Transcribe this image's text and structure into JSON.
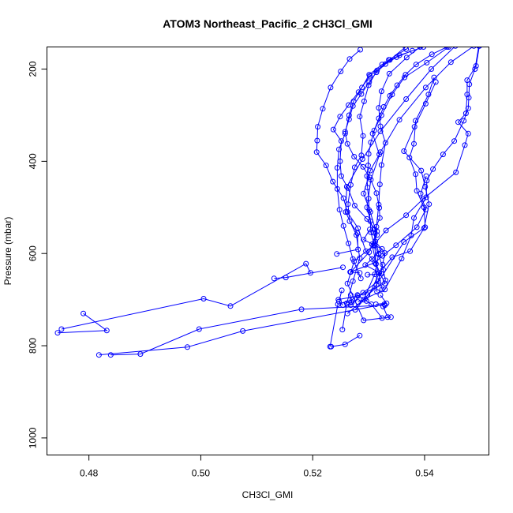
{
  "chart_data": {
    "type": "line",
    "title": "ATOM3 Northeast_Pacific_2 CH3Cl_GMI",
    "xlabel": "CH3Cl_GMI",
    "ylabel": "Pressure (mbar)",
    "xlim": [
      0.4725,
      0.5515
    ],
    "ylim": [
      1037,
      152
    ],
    "y_reversed": true,
    "xticks": [
      0.48,
      0.5,
      0.52,
      0.54
    ],
    "xtick_labels": [
      "0.48",
      "0.50",
      "0.52",
      "0.54"
    ],
    "yticks": [
      200,
      400,
      600,
      800,
      1000
    ],
    "ytick_labels": [
      "200",
      "400",
      "600",
      "800",
      "1000"
    ],
    "grid": false,
    "legend": "none",
    "colors": {
      "series": "#0000ff",
      "axis": "#000000",
      "background": "#ffffff"
    },
    "series": [
      {
        "points": [
          [
            0.5253,
            765
          ],
          [
            0.5261,
            708
          ],
          [
            0.5272,
            660
          ],
          [
            0.5284,
            610
          ],
          [
            0.5278,
            560
          ],
          [
            0.5259,
            510
          ],
          [
            0.5261,
            455
          ],
          [
            0.5289,
            395
          ],
          [
            0.5321,
            335
          ],
          [
            0.5367,
            265
          ],
          [
            0.5412,
            200
          ],
          [
            0.5455,
            150
          ]
        ]
      },
      {
        "points": [
          [
            0.5262,
            730
          ],
          [
            0.5291,
            700
          ],
          [
            0.5311,
            645
          ],
          [
            0.5318,
            600
          ],
          [
            0.5309,
            555
          ],
          [
            0.5297,
            500
          ],
          [
            0.5304,
            440
          ],
          [
            0.5321,
            380
          ],
          [
            0.5355,
            310
          ],
          [
            0.5402,
            240
          ],
          [
            0.5447,
            185
          ],
          [
            0.5488,
            150
          ]
        ]
      },
      {
        "points": [
          [
            0.5231,
            802
          ],
          [
            0.5245,
            710
          ],
          [
            0.5271,
            700
          ],
          [
            0.528,
            690
          ],
          [
            0.5305,
            710
          ],
          [
            0.5324,
            740
          ]
        ]
      },
      {
        "points": [
          [
            0.479,
            730
          ],
          [
            0.4832,
            767
          ],
          [
            0.4744,
            772
          ]
        ]
      },
      {
        "points": [
          [
            0.4751,
            764
          ],
          [
            0.5005,
            698
          ],
          [
            0.5053,
            714
          ],
          [
            0.5188,
            622
          ],
          [
            0.5196,
            642
          ]
        ]
      },
      {
        "points": [
          [
            0.4818,
            820
          ],
          [
            0.4976,
            803
          ],
          [
            0.5075,
            768
          ],
          [
            0.5328,
            710
          ]
        ]
      },
      {
        "points": [
          [
            0.4839,
            820
          ],
          [
            0.4892,
            818
          ],
          [
            0.4997,
            764
          ],
          [
            0.518,
            721
          ],
          [
            0.5329,
            712
          ]
        ]
      },
      {
        "points": [
          [
            0.5131,
            654
          ],
          [
            0.5152,
            652
          ],
          [
            0.5254,
            630
          ]
        ]
      },
      {
        "points": [
          [
            0.5233,
            802
          ],
          [
            0.5258,
            797
          ],
          [
            0.5284,
            778
          ]
        ]
      },
      {
        "points": [
          [
            0.5254,
            712
          ],
          [
            0.5247,
            704
          ],
          [
            0.5252,
            680
          ]
        ]
      },
      {
        "points": [
          [
            0.5262,
            711
          ],
          [
            0.527,
            706
          ],
          [
            0.5268,
            690
          ]
        ]
      },
      {
        "points": [
          [
            0.5313,
            710
          ],
          [
            0.5332,
            708
          ],
          [
            0.5321,
            690
          ]
        ]
      },
      {
        "points": [
          [
            0.5334,
            738
          ],
          [
            0.5326,
            715
          ]
        ]
      },
      {
        "points": [
          [
            0.5298,
            646
          ],
          [
            0.5323,
            644
          ],
          [
            0.5294,
            625
          ],
          [
            0.5306,
            612
          ],
          [
            0.5324,
            590
          ],
          [
            0.5291,
            570
          ],
          [
            0.5302,
            548
          ]
        ]
      },
      {
        "points": [
          [
            0.5284,
            642
          ],
          [
            0.5267,
            640
          ],
          [
            0.5311,
            620
          ],
          [
            0.5325,
            605
          ],
          [
            0.5349,
            582
          ],
          [
            0.5386,
            543
          ],
          [
            0.5402,
            505
          ],
          [
            0.5393,
            470
          ],
          [
            0.5403,
            432
          ]
        ]
      },
      {
        "points": [
          [
            0.5296,
            703
          ],
          [
            0.5319,
            642
          ],
          [
            0.5342,
            608
          ],
          [
            0.5374,
            595
          ],
          [
            0.5399,
            545
          ],
          [
            0.5408,
            493
          ],
          [
            0.5401,
            455
          ],
          [
            0.5394,
            420
          ],
          [
            0.5363,
            378
          ],
          [
            0.5382,
            325
          ],
          [
            0.5402,
            275
          ],
          [
            0.542,
            228
          ]
        ]
      },
      {
        "points": [
          [
            0.5276,
            722
          ],
          [
            0.5314,
            668
          ],
          [
            0.5363,
            575
          ],
          [
            0.5401,
            543
          ],
          [
            0.5399,
            500
          ],
          [
            0.5386,
            464
          ],
          [
            0.5384,
            428
          ],
          [
            0.5373,
            392
          ],
          [
            0.5381,
            362
          ],
          [
            0.5384,
            312
          ],
          [
            0.5407,
            255
          ],
          [
            0.5417,
            218
          ]
        ]
      },
      {
        "points": [
          [
            0.5281,
            705
          ],
          [
            0.5329,
            678
          ],
          [
            0.5359,
            611
          ],
          [
            0.5376,
            561
          ],
          [
            0.5381,
            523
          ],
          [
            0.5403,
            478
          ],
          [
            0.5404,
            442
          ],
          [
            0.5415,
            417
          ],
          [
            0.5433,
            385
          ],
          [
            0.5453,
            356
          ],
          [
            0.547,
            312
          ],
          [
            0.5478,
            285
          ],
          [
            0.5479,
            262
          ],
          [
            0.548,
            233
          ],
          [
            0.549,
            200
          ],
          [
            0.5497,
            150
          ]
        ]
      },
      {
        "points": [
          [
            0.534,
            738
          ],
          [
            0.5291,
            745
          ],
          [
            0.5262,
            665
          ],
          [
            0.5274,
            617
          ],
          [
            0.5308,
            583
          ],
          [
            0.5331,
            550
          ],
          [
            0.5367,
            517
          ],
          [
            0.5397,
            482
          ],
          [
            0.5456,
            424
          ],
          [
            0.5472,
            365
          ],
          [
            0.5478,
            340
          ],
          [
            0.546,
            315
          ],
          [
            0.5474,
            296
          ],
          [
            0.5476,
            255
          ],
          [
            0.5476,
            224
          ],
          [
            0.5492,
            193
          ],
          [
            0.5498,
            150
          ]
        ]
      },
      {
        "points": [
          [
            0.5324,
            678
          ],
          [
            0.5306,
            580
          ],
          [
            0.5315,
            552
          ],
          [
            0.5297,
            525
          ],
          [
            0.5275,
            496
          ],
          [
            0.5263,
            458
          ],
          [
            0.5251,
            432
          ],
          [
            0.5249,
            400
          ],
          [
            0.5251,
            356
          ],
          [
            0.5237,
            331
          ],
          [
            0.5249,
            303
          ],
          [
            0.5264,
            278
          ],
          [
            0.5282,
            250
          ],
          [
            0.5302,
            215
          ],
          [
            0.5338,
            180
          ],
          [
            0.5366,
            152
          ]
        ]
      },
      {
        "points": [
          [
            0.5268,
            640
          ],
          [
            0.5301,
            597
          ],
          [
            0.5315,
            560
          ],
          [
            0.5303,
            510
          ],
          [
            0.5291,
            470
          ],
          [
            0.5303,
            420
          ],
          [
            0.5319,
            385
          ],
          [
            0.5307,
            340
          ],
          [
            0.5323,
            300
          ],
          [
            0.5342,
            255
          ],
          [
            0.5364,
            218
          ],
          [
            0.5404,
            186
          ],
          [
            0.5443,
            152
          ]
        ]
      },
      {
        "points": [
          [
            0.5315,
            683
          ],
          [
            0.5313,
            623
          ],
          [
            0.5311,
            583
          ],
          [
            0.5314,
            542
          ],
          [
            0.5318,
            494
          ],
          [
            0.532,
            450
          ],
          [
            0.5323,
            408
          ],
          [
            0.533,
            360
          ],
          [
            0.5321,
            324
          ],
          [
            0.5318,
            284
          ],
          [
            0.5323,
            248
          ],
          [
            0.5337,
            210
          ],
          [
            0.5368,
            175
          ],
          [
            0.5392,
            152
          ]
        ]
      },
      {
        "points": [
          [
            0.5286,
            654
          ],
          [
            0.5272,
            612
          ],
          [
            0.5264,
            578
          ],
          [
            0.5255,
            540
          ],
          [
            0.5248,
            505
          ],
          [
            0.5244,
            460
          ],
          [
            0.5244,
            414
          ],
          [
            0.5247,
            374
          ],
          [
            0.5258,
            340
          ],
          [
            0.5265,
            300
          ],
          [
            0.5273,
            270
          ],
          [
            0.5288,
            240
          ],
          [
            0.5301,
            212
          ],
          [
            0.5324,
            190
          ],
          [
            0.5355,
            170
          ],
          [
            0.5398,
            152
          ]
        ]
      },
      {
        "points": [
          [
            0.5246,
            700
          ],
          [
            0.5281,
            692
          ],
          [
            0.5329,
            665
          ],
          [
            0.5313,
            622
          ],
          [
            0.5295,
            595
          ],
          [
            0.5281,
            545
          ],
          [
            0.5262,
            510
          ],
          [
            0.5255,
            480
          ],
          [
            0.5236,
            444
          ],
          [
            0.5224,
            409
          ],
          [
            0.5207,
            380
          ],
          [
            0.5208,
            355
          ],
          [
            0.5209,
            325
          ],
          [
            0.5218,
            286
          ],
          [
            0.5232,
            240
          ],
          [
            0.525,
            205
          ],
          [
            0.5266,
            178
          ],
          [
            0.5285,
            158
          ]
        ]
      },
      {
        "points": [
          [
            0.5243,
            601
          ],
          [
            0.5281,
            591
          ],
          [
            0.528,
            556
          ],
          [
            0.5266,
            530
          ],
          [
            0.5263,
            493
          ],
          [
            0.5268,
            451
          ],
          [
            0.5275,
            413
          ],
          [
            0.5287,
            387
          ],
          [
            0.529,
            345
          ],
          [
            0.5284,
            303
          ],
          [
            0.5292,
            270
          ],
          [
            0.53,
            235
          ],
          [
            0.5315,
            203
          ],
          [
            0.5336,
            180
          ],
          [
            0.5367,
            157
          ]
        ]
      },
      {
        "points": [
          [
            0.5268,
            712
          ],
          [
            0.529,
            685
          ],
          [
            0.5317,
            660
          ],
          [
            0.5325,
            624
          ],
          [
            0.5329,
            599
          ],
          [
            0.5312,
            574
          ],
          [
            0.5311,
            548
          ],
          [
            0.532,
            523
          ],
          [
            0.5319,
            501
          ],
          [
            0.5314,
            469
          ],
          [
            0.5302,
            435
          ],
          [
            0.529,
            412
          ],
          [
            0.5274,
            390
          ],
          [
            0.5262,
            362
          ],
          [
            0.5258,
            336
          ],
          [
            0.5265,
            309
          ],
          [
            0.5272,
            280
          ],
          [
            0.5287,
            254
          ],
          [
            0.5301,
            228
          ],
          [
            0.5314,
            207
          ],
          [
            0.533,
            189
          ],
          [
            0.535,
            174
          ],
          [
            0.5378,
            160
          ]
        ]
      },
      {
        "points": [
          [
            0.5298,
            690
          ],
          [
            0.533,
            658
          ],
          [
            0.5326,
            635
          ],
          [
            0.5318,
            602
          ],
          [
            0.531,
            581
          ],
          [
            0.5304,
            554
          ],
          [
            0.5303,
            530
          ],
          [
            0.5301,
            506
          ],
          [
            0.53,
            481
          ],
          [
            0.5298,
            457
          ],
          [
            0.5297,
            432
          ],
          [
            0.5299,
            409
          ],
          [
            0.53,
            384
          ],
          [
            0.5304,
            359
          ],
          [
            0.531,
            333
          ],
          [
            0.5318,
            307
          ],
          [
            0.5327,
            282
          ],
          [
            0.5338,
            258
          ],
          [
            0.5351,
            235
          ],
          [
            0.5366,
            212
          ],
          [
            0.5385,
            190
          ],
          [
            0.5413,
            168
          ],
          [
            0.544,
            152
          ]
        ]
      }
    ]
  }
}
